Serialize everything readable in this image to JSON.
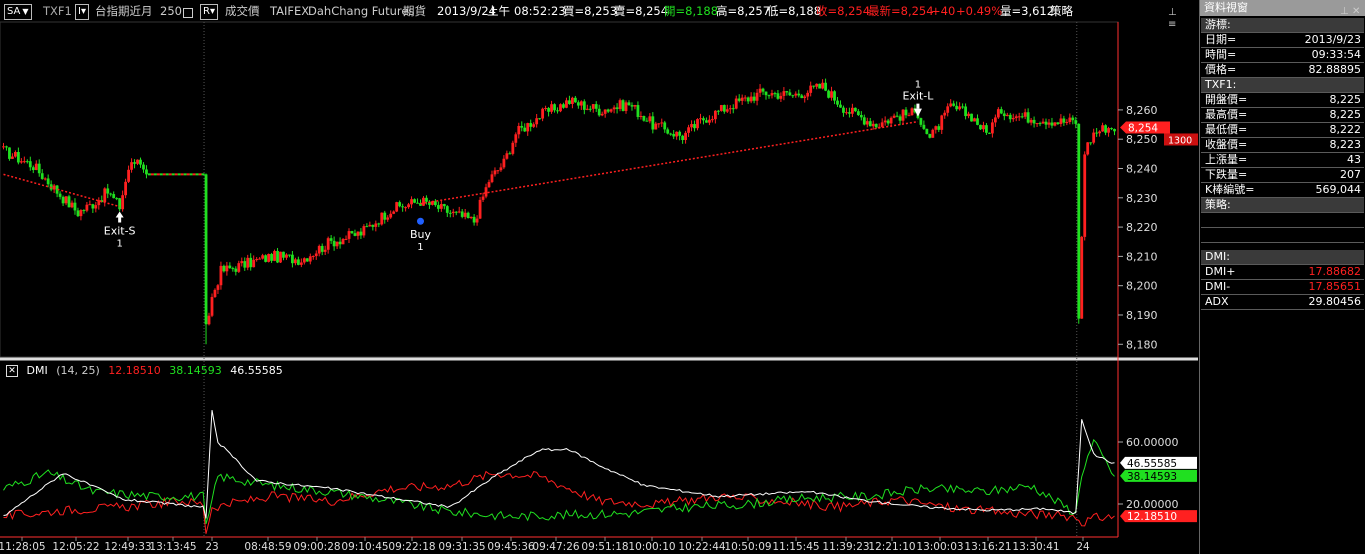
{
  "toolbar": {
    "mode": "SA",
    "mode_arrow": "▼",
    "symbol": "TXF1",
    "interval_btn": "I▾",
    "product": "台指期近月",
    "bars": "250",
    "bars_icon": "square-icon",
    "range_btn": "R▾",
    "price_type": "成交價",
    "exchange": "TAIFEX",
    "broker": "DahChang Futures",
    "market": "期貨",
    "date": "2013/9/24",
    "ampm": "上午",
    "time": "08:52:23",
    "buy": "買=8,253",
    "sell": "賣=8,254",
    "open": "開=8,188",
    "high": "高=8,257",
    "low": "低=8,188",
    "close": "收=8,254",
    "last": "最新=8,254",
    "change": "+40",
    "change_pct": "+0.49%",
    "volume": "量=3,612",
    "strategy": "策略"
  },
  "colors": {
    "up": "#ff2020",
    "down": "#20e020",
    "dmi_plus": "#ff2020",
    "dmi_minus": "#20e020",
    "adx": "#ffffff",
    "trend": "#ff2020",
    "buy_marker": "#2060ff"
  },
  "markers": [
    {
      "label": "Exit-S",
      "qty": "1",
      "bar": 39,
      "price": 8226,
      "kind": "exit_short"
    },
    {
      "label": "Buy",
      "qty": "1",
      "bar": 140,
      "price": 8222,
      "kind": "buy"
    },
    {
      "label": "Exit-L",
      "qty": "1",
      "bar": 307,
      "price": 8256,
      "kind": "exit_long"
    }
  ],
  "price_tags": {
    "last": "8,254",
    "secondary": "1300"
  },
  "dmi": {
    "name": "DMI",
    "params": "(14,  25)",
    "dmi_plus_value": "12.18510",
    "dmi_minus_value": "38.14593",
    "adx_value": "46.55585",
    "y_ticks": [
      "60.00000",
      "20.00000"
    ]
  },
  "x_labels": [
    "11:28:05",
    "12:05:22",
    "12:49:33",
    "13:13:45",
    "23",
    "08:48:59",
    "09:00:28",
    "09:10:45",
    "09:22:18",
    "09:31:35",
    "09:45:36",
    "09:47:26",
    "09:51:18",
    "10:00:10",
    "10:22:44",
    "10:50:09",
    "11:15:45",
    "11:39:23",
    "12:21:10",
    "13:00:03",
    "13:16:21",
    "13:30:41",
    "24"
  ],
  "chart_data": {
    "type": "candlestick",
    "symbol": "TXF1",
    "ylim": [
      8176,
      8290
    ],
    "y_ticks": [
      8180,
      8190,
      8200,
      8210,
      8220,
      8230,
      8240,
      8250,
      8260
    ],
    "y_tick_labels": [
      "8,180",
      "8,190",
      "8,200",
      "8,210",
      "8,220",
      "8,230",
      "8,240",
      "8,250",
      "8,260"
    ],
    "bar_count": 374,
    "close_keypoints": [
      [
        0,
        8246
      ],
      [
        10,
        8241
      ],
      [
        20,
        8230
      ],
      [
        25,
        8225
      ],
      [
        30,
        8228
      ],
      [
        35,
        8232
      ],
      [
        39,
        8227
      ],
      [
        42,
        8240
      ],
      [
        45,
        8243
      ],
      [
        48,
        8238
      ],
      [
        67,
        8238
      ],
      [
        68,
        8185
      ],
      [
        70,
        8196
      ],
      [
        73,
        8205
      ],
      [
        80,
        8207
      ],
      [
        90,
        8210
      ],
      [
        100,
        8209
      ],
      [
        110,
        8215
      ],
      [
        120,
        8218
      ],
      [
        130,
        8226
      ],
      [
        140,
        8229
      ],
      [
        150,
        8225
      ],
      [
        158,
        8222
      ],
      [
        163,
        8236
      ],
      [
        168,
        8242
      ],
      [
        172,
        8252
      ],
      [
        180,
        8258
      ],
      [
        190,
        8263
      ],
      [
        200,
        8260
      ],
      [
        210,
        8262
      ],
      [
        218,
        8255
      ],
      [
        228,
        8251
      ],
      [
        235,
        8257
      ],
      [
        245,
        8262
      ],
      [
        255,
        8266
      ],
      [
        265,
        8265
      ],
      [
        275,
        8268
      ],
      [
        283,
        8260
      ],
      [
        293,
        8255
      ],
      [
        300,
        8258
      ],
      [
        307,
        8259
      ],
      [
        311,
        8250
      ],
      [
        318,
        8261
      ],
      [
        325,
        8258
      ],
      [
        330,
        8252
      ],
      [
        335,
        8260
      ],
      [
        340,
        8258
      ],
      [
        348,
        8257
      ],
      [
        355,
        8256
      ],
      [
        360,
        8256
      ],
      [
        361,
        8188
      ],
      [
        363,
        8246
      ],
      [
        366,
        8252
      ],
      [
        370,
        8254
      ],
      [
        373,
        8254
      ]
    ],
    "trend_lines": [
      {
        "from": [
          0,
          8238
        ],
        "to": [
          39,
          8227
        ],
        "style": "dotted"
      },
      {
        "from": [
          140,
          8228
        ],
        "to": [
          307,
          8256
        ],
        "style": "dotted"
      }
    ],
    "dmi_keypoints": {
      "dmi_plus": [
        [
          0,
          12
        ],
        [
          20,
          16
        ],
        [
          40,
          18
        ],
        [
          60,
          22
        ],
        [
          67,
          20
        ],
        [
          68,
          2
        ],
        [
          70,
          18
        ],
        [
          90,
          25
        ],
        [
          110,
          22
        ],
        [
          130,
          30
        ],
        [
          150,
          32
        ],
        [
          165,
          40
        ],
        [
          180,
          38
        ],
        [
          200,
          22
        ],
        [
          220,
          20
        ],
        [
          240,
          25
        ],
        [
          260,
          22
        ],
        [
          280,
          18
        ],
        [
          300,
          23
        ],
        [
          320,
          17
        ],
        [
          340,
          14
        ],
        [
          360,
          12
        ],
        [
          362,
          8
        ],
        [
          366,
          11
        ],
        [
          373,
          12
        ]
      ],
      "dmi_minus": [
        [
          0,
          30
        ],
        [
          15,
          40
        ],
        [
          30,
          28
        ],
        [
          50,
          25
        ],
        [
          67,
          25
        ],
        [
          68,
          5
        ],
        [
          72,
          38
        ],
        [
          90,
          32
        ],
        [
          110,
          28
        ],
        [
          130,
          22
        ],
        [
          150,
          15
        ],
        [
          170,
          12
        ],
        [
          190,
          13
        ],
        [
          210,
          14
        ],
        [
          230,
          18
        ],
        [
          250,
          20
        ],
        [
          270,
          24
        ],
        [
          290,
          25
        ],
        [
          310,
          30
        ],
        [
          330,
          28
        ],
        [
          345,
          32
        ],
        [
          360,
          14
        ],
        [
          362,
          40
        ],
        [
          366,
          60
        ],
        [
          373,
          38
        ]
      ],
      "adx": [
        [
          0,
          12
        ],
        [
          20,
          40
        ],
        [
          40,
          23
        ],
        [
          67,
          18
        ],
        [
          68,
          10
        ],
        [
          70,
          80
        ],
        [
          72,
          60
        ],
        [
          85,
          35
        ],
        [
          110,
          30
        ],
        [
          130,
          24
        ],
        [
          150,
          18
        ],
        [
          165,
          38
        ],
        [
          180,
          55
        ],
        [
          190,
          55
        ],
        [
          200,
          45
        ],
        [
          215,
          32
        ],
        [
          240,
          25
        ],
        [
          270,
          28
        ],
        [
          290,
          22
        ],
        [
          310,
          18
        ],
        [
          330,
          16
        ],
        [
          350,
          17
        ],
        [
          360,
          14
        ],
        [
          362,
          75
        ],
        [
          366,
          52
        ],
        [
          373,
          46
        ]
      ]
    },
    "dmi_ylim": [
      0,
      100
    ]
  },
  "panel": {
    "title": "資料視窗",
    "rows": [
      {
        "k": "游標:",
        "v": "",
        "sec": true
      },
      {
        "k": "日期=",
        "v": "2013/9/23"
      },
      {
        "k": "時間=",
        "v": "09:33:54"
      },
      {
        "k": "價格=",
        "v": "82.88895"
      },
      {
        "k": "TXF1:",
        "v": "",
        "sec": true
      },
      {
        "k": "開盤價=",
        "v": "8,225"
      },
      {
        "k": "最高價=",
        "v": "8,225"
      },
      {
        "k": "最低價=",
        "v": "8,222"
      },
      {
        "k": "收盤價=",
        "v": "8,223"
      },
      {
        "k": "上漲量=",
        "v": "43"
      },
      {
        "k": "下跌量=",
        "v": "207"
      },
      {
        "k": "K棒編號=",
        "v": "569,044"
      },
      {
        "k": "策略:",
        "v": "",
        "sec": true
      },
      {
        "k": "",
        "v": ""
      },
      {
        "k": "",
        "v": ""
      },
      {
        "k": "DMI:",
        "v": "",
        "sec": true
      },
      {
        "k": "DMI+",
        "v": "17.88682",
        "color": "red"
      },
      {
        "k": "DMI-",
        "v": "17.85651",
        "color": "red"
      },
      {
        "k": "ADX",
        "v": "29.80456"
      }
    ]
  }
}
